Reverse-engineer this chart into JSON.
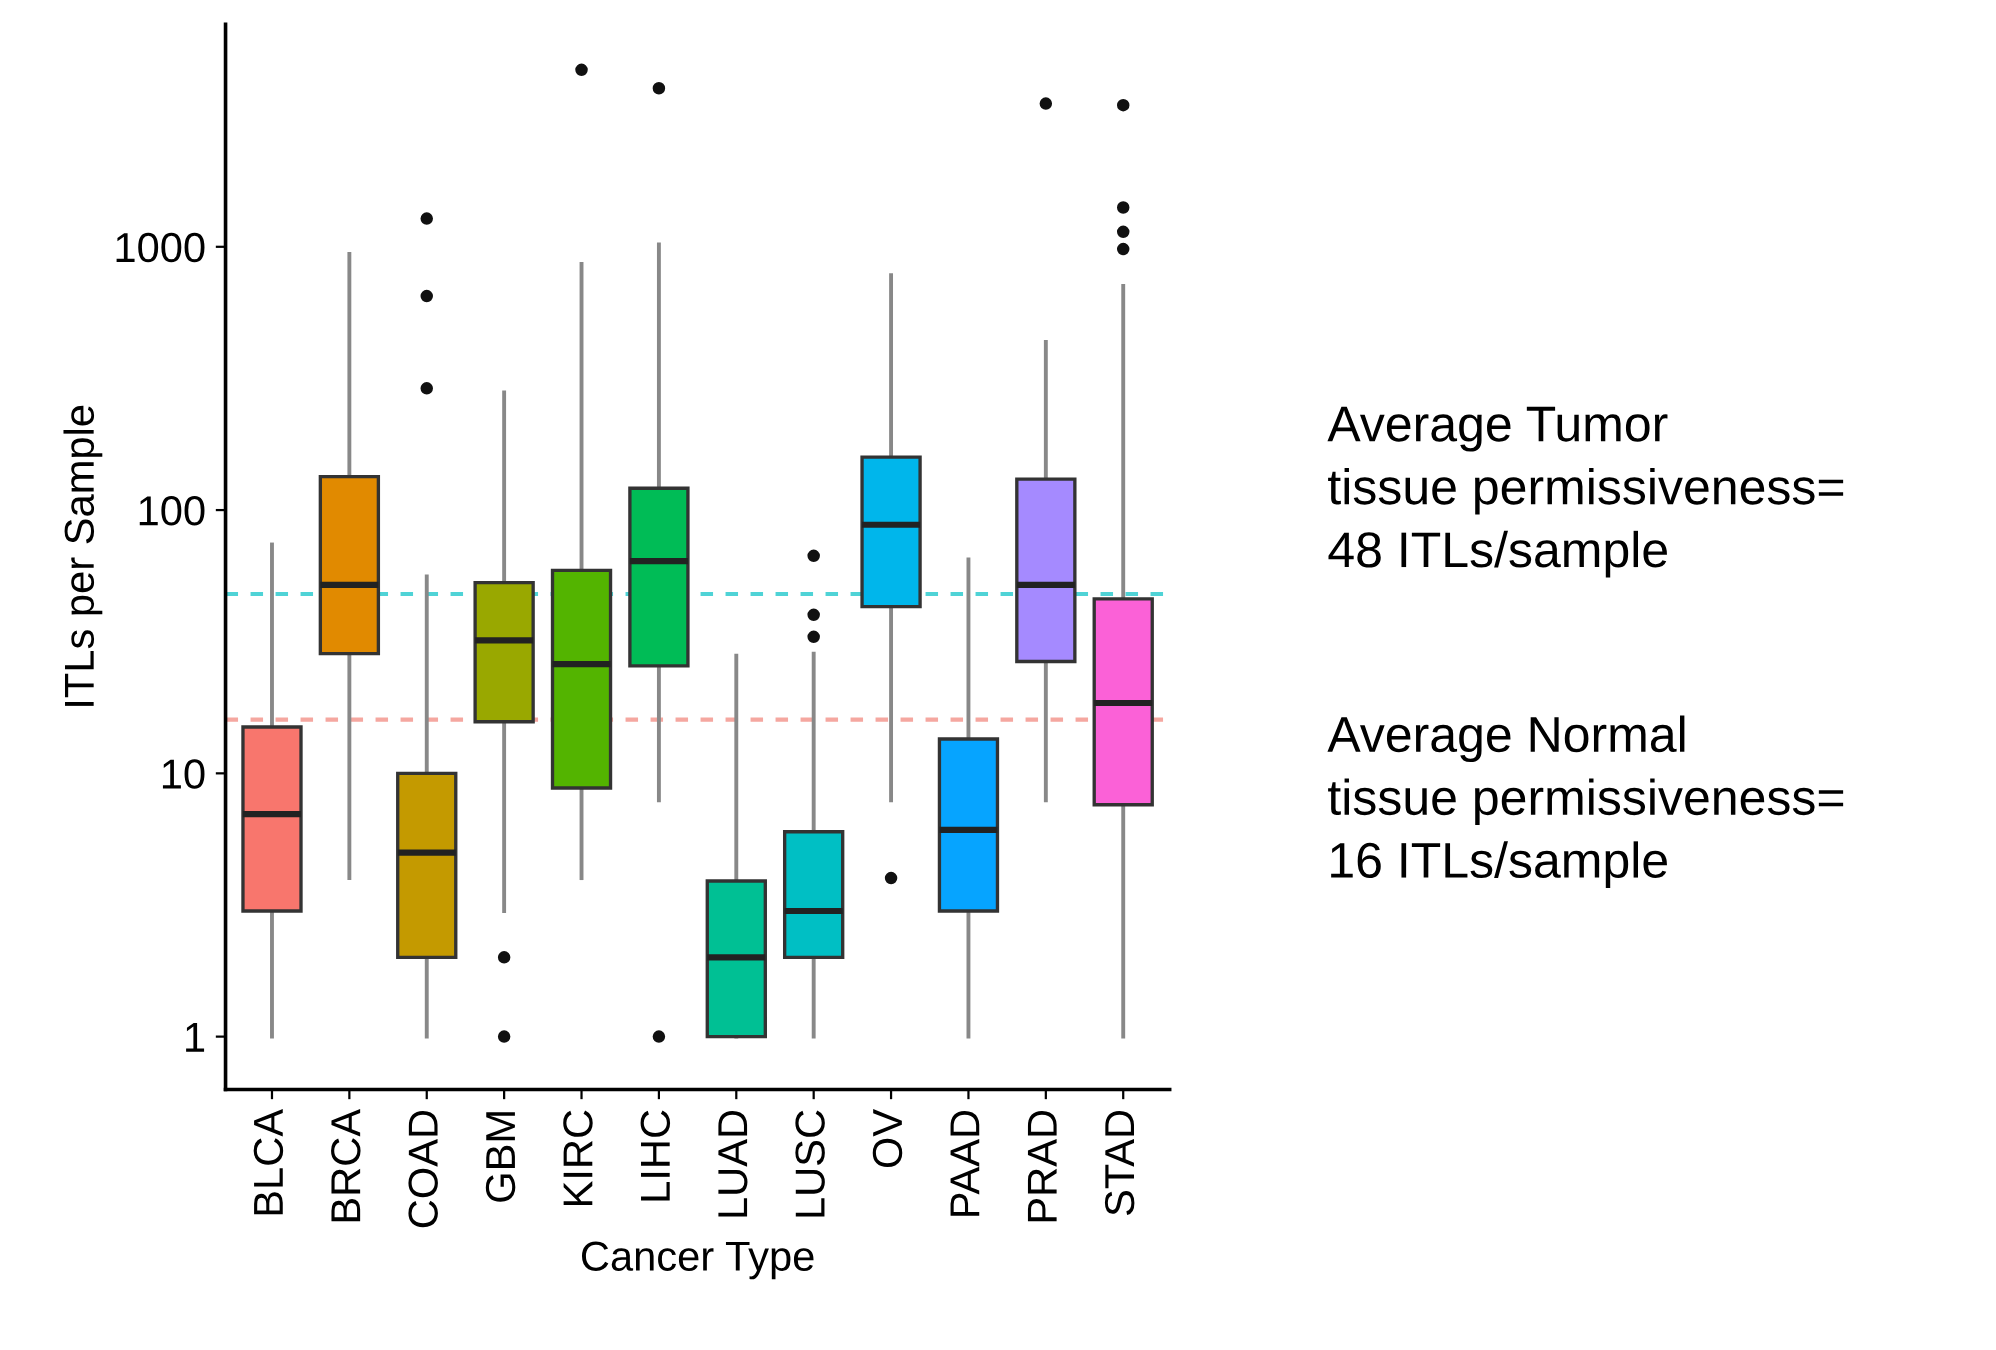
{
  "chart_data": {
    "type": "box",
    "xlabel": "Cancer Type",
    "ylabel": "ITLs per Sample",
    "categories": [
      "BLCA",
      "BRCA",
      "COAD",
      "GBM",
      "KIRC",
      "LIHC",
      "LUAD",
      "LUSC",
      "OV",
      "PAAD",
      "PRAD",
      "STAD"
    ],
    "colors": [
      "#f8766d",
      "#e18a00",
      "#c49a00",
      "#99a800",
      "#53b400",
      "#00bc56",
      "#00c094",
      "#00bfc4",
      "#00b6eb",
      "#06a4ff",
      "#a58aff",
      "#fb61d7"
    ],
    "boxes": [
      {
        "low": 1,
        "q1": 3,
        "median": 7,
        "q3": 15,
        "high": 74
      },
      {
        "low": 4,
        "q1": 28.5,
        "median": 52,
        "q3": 134,
        "high": 940
      },
      {
        "low": 1,
        "q1": 2,
        "median": 5,
        "q3": 10,
        "high": 56,
        "outliers": [
          290,
          650,
          1280
        ]
      },
      {
        "low": 3,
        "q1": 15.7,
        "median": 32,
        "q3": 53,
        "high": 280,
        "outliers": [
          1,
          2
        ]
      },
      {
        "low": 4,
        "q1": 8.8,
        "median": 26,
        "q3": 59,
        "high": 860,
        "outliers": [
          4700
        ]
      },
      {
        "low": 7.9,
        "q1": 25.6,
        "median": 64,
        "q3": 121,
        "high": 1020,
        "outliers": [
          1,
          4000
        ]
      },
      {
        "low": 1,
        "q1": 1,
        "median": 2,
        "q3": 3.9,
        "high": 28
      },
      {
        "low": 1,
        "q1": 2,
        "median": 3,
        "q3": 6,
        "high": 28.5,
        "outliers": [
          33,
          40,
          67
        ]
      },
      {
        "low": 7.9,
        "q1": 43,
        "median": 88,
        "q3": 159,
        "high": 780,
        "outliers": [
          4
        ]
      },
      {
        "low": 1,
        "q1": 3,
        "median": 6.1,
        "q3": 13.5,
        "high": 65
      },
      {
        "low": 7.9,
        "q1": 26.6,
        "median": 52,
        "q3": 131,
        "high": 435,
        "outliers": [
          3500
        ]
      },
      {
        "low": 1,
        "q1": 7.6,
        "median": 18.5,
        "q3": 46,
        "high": 710,
        "outliers": [
          980,
          1140,
          1410,
          3450
        ]
      }
    ],
    "log": "y",
    "ylim": [
      0.63,
      7000
    ],
    "yticks": [
      1,
      10,
      100,
      1000
    ],
    "grid": false,
    "ref_lines": [
      {
        "axis": "y",
        "value": 48,
        "color": "#4fd3d6",
        "line_style": "dashed"
      },
      {
        "axis": "y",
        "value": 16,
        "color": "#f5a7a0",
        "line_style": "dashed"
      }
    ],
    "annotations": [
      "Average Tumor\ntissue permissiveness=\n48 ITLs/sample",
      "Average Normal\ntissue permissiveness=\n16 ITLs/sample"
    ]
  }
}
